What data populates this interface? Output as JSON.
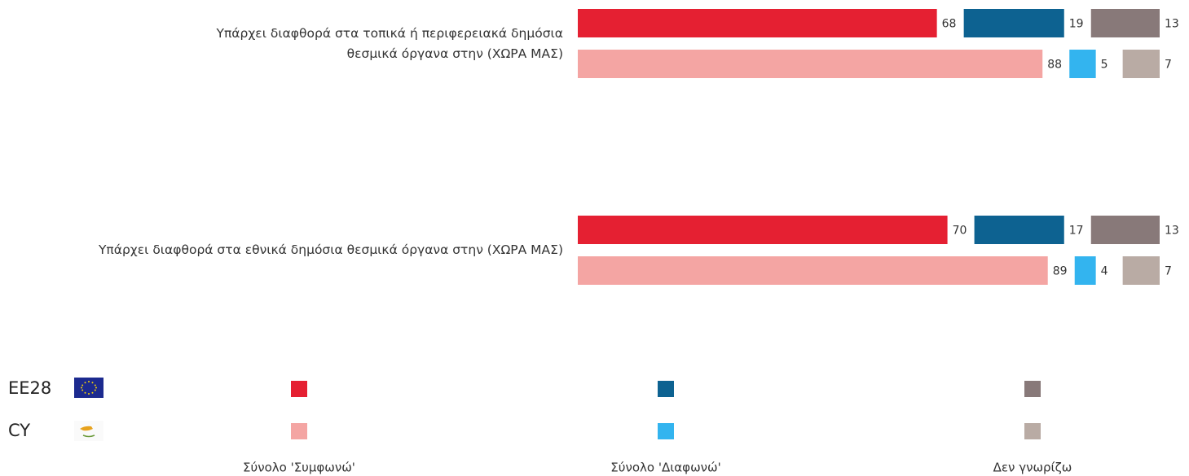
{
  "chart_data": {
    "type": "bar",
    "categories": [
      "Υπάρχει διαφθορά στα τοπικά ή περιφερειακά δημόσια θεσμικά όργανα στην (ΧΩΡΑ ΜΑΣ)",
      "Υπάρχει διαφθορά στα εθνικά δημόσια θεσμικά όργανα στην (ΧΩΡΑ ΜΑΣ)"
    ],
    "rows": [
      "EE28",
      "CY"
    ],
    "series": [
      {
        "name": "Σύνολο 'Συμφωνώ'",
        "colors": [
          "#e52032",
          "#f4a5a3"
        ],
        "values": [
          [
            68,
            88
          ],
          [
            70,
            89
          ]
        ]
      },
      {
        "name": "Σύνολο 'Διαφωνώ'",
        "colors": [
          "#0d6291",
          "#33b4ef"
        ],
        "values": [
          [
            19,
            5
          ],
          [
            17,
            4
          ]
        ]
      },
      {
        "name": "Δεν γνωρίζω",
        "colors": [
          "#887979",
          "#b9aba4"
        ],
        "values": [
          [
            13,
            7
          ],
          [
            13,
            7
          ]
        ]
      }
    ],
    "xlim": [
      0,
      100
    ]
  }
}
